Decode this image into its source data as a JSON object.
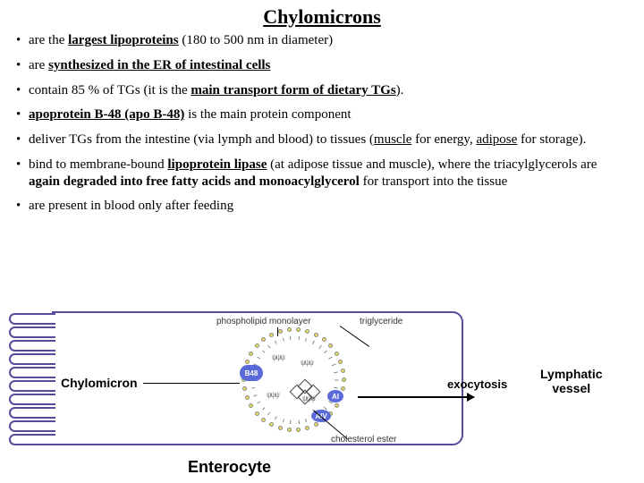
{
  "title": "Chylomicrons",
  "bullets": {
    "b1": {
      "pre": "are the ",
      "bold": "largest lipoproteins",
      "post": " (180 to 500 nm in diameter)"
    },
    "b2": {
      "pre": "are ",
      "bold": "synthesized in the ER of intestinal cells"
    },
    "b3": {
      "pre": "contain 85 % of TGs (it is the ",
      "bold": "main transport form of dietary TGs",
      "post": ")."
    },
    "b4": {
      "bold1": "apoprotein B-48 (apo B-48)",
      "rest": " is the main protein component"
    },
    "b5": {
      "pre": "deliver TGs from the intestine (via lymph and blood) to tissues (",
      "m": "muscle",
      "mid": " for energy, ",
      "a": "adipose",
      "post": " for storage)."
    },
    "b6": {
      "pre": "bind to membrane-bound ",
      "ll": "lipoprotein lipase",
      "mid": " (at adipose tissue and muscle), where the triacylglycerols are ",
      "bold": "again degraded into free fatty acids and monoacylglycerol",
      "post": " for transport into the tissue"
    },
    "b7": "are present in blood only after feeding"
  },
  "diagram": {
    "chylomicron_label": "Chylomicron",
    "enterocyte_label": "Enterocyte",
    "exocytosis_label": "exocytosis",
    "lymph_label_l1": "Lymphatic",
    "lymph_label_l2": "vessel",
    "phospholipid_label": "phospholipid monolayer",
    "triglyceride_label": "triglyceride",
    "cholesterol_label": "cholesterol ester",
    "apo_b48": "B48",
    "apo_ai": "AI",
    "apo_aiv": "AIV",
    "colors": {
      "border": "#5a4a9a",
      "apo": "#5a6ad8",
      "lipid_head": "#e9e05a"
    }
  }
}
